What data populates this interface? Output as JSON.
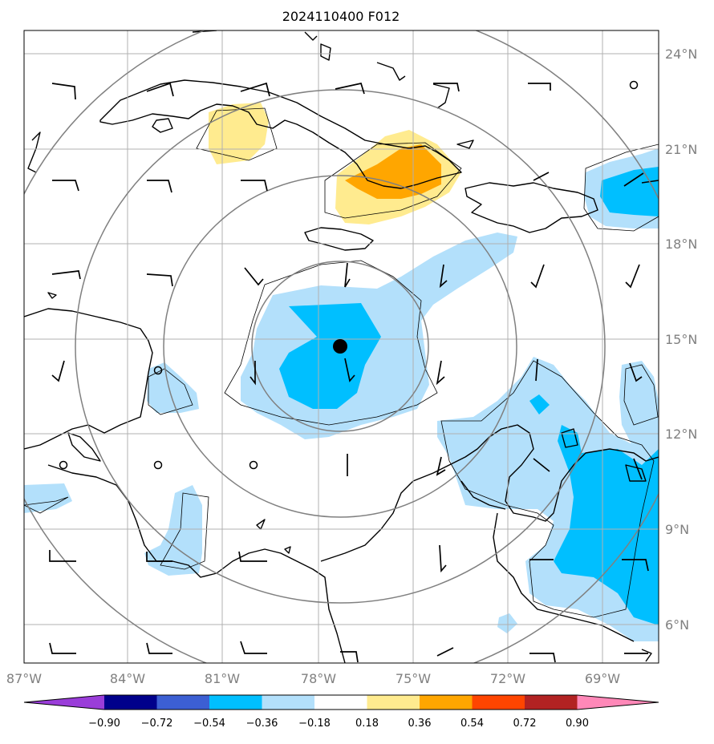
{
  "map": {
    "title": "2024110400 F012",
    "lon_labels": [
      "87°W",
      "84°W",
      "81°W",
      "78°W",
      "75°W",
      "72°W",
      "69°W"
    ],
    "lat_labels": [
      "24°N",
      "21°N",
      "18°N",
      "15°N",
      "12°N",
      "9°N",
      "6°N"
    ],
    "storm_center": {
      "lon": -77.3,
      "lat": 14.8
    },
    "colors": {
      "light_blue": "#b3e0fb",
      "blue": "#00bfff",
      "light_yellow": "#ffeb8f",
      "orange": "#ffa600"
    }
  },
  "colorbar": {
    "ticks": [
      "−0.90",
      "−0.72",
      "−0.54",
      "−0.36",
      "−0.18",
      "0.18",
      "0.36",
      "0.54",
      "0.72",
      "0.90"
    ],
    "colors": [
      "#9a3dd9",
      "#00008b",
      "#3c5fd3",
      "#00bfff",
      "#b3e0fb",
      "#ffffff",
      "#ffeb8f",
      "#ffa600",
      "#ff4500",
      "#b22222",
      "#ff88b8"
    ]
  }
}
